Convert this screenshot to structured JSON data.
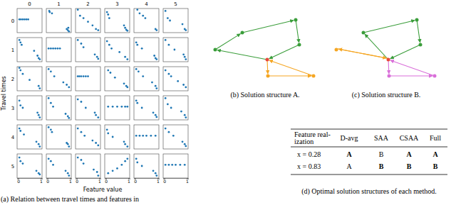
{
  "chart_data": {
    "type": "scatter",
    "x_label": "Feature value",
    "y_label": "Travel times",
    "caption": "(a) Relation between travel times and features in",
    "column_labels": [
      "0",
      "1",
      "2",
      "3",
      "4",
      "5"
    ],
    "row_labels": [
      "0",
      "1",
      "2",
      "3",
      "4",
      "5"
    ],
    "xlim": [
      -0.05,
      1.05
    ],
    "xticks": [
      0,
      1
    ],
    "ylim": [
      0,
      1
    ],
    "tick_labels": "x",
    "color": "#1f77b4",
    "cells": [
      [
        {
          "x": [
            0.05,
            0.12,
            0.2,
            0.28,
            0.36,
            0.44
          ],
          "y": [
            0.55,
            0.55,
            0.55,
            0.55,
            0.55,
            0.55
          ]
        },
        {
          "x": [
            0.08,
            0.1,
            0.2,
            0.85,
            0.9,
            0.92,
            0.95
          ],
          "y": [
            0.9,
            0.85,
            0.8,
            0.15,
            0.1,
            0.2,
            0.05
          ]
        },
        {
          "x": [
            0.05,
            0.15,
            0.3,
            0.5,
            0.7,
            0.85,
            0.95
          ],
          "y": [
            0.95,
            0.7,
            0.6,
            0.45,
            0.3,
            0.15,
            0.1
          ]
        },
        {
          "x": [
            0.05,
            0.1,
            0.15,
            0.8,
            0.85,
            0.9,
            0.95
          ],
          "y": [
            0.85,
            0.75,
            0.6,
            0.3,
            0.2,
            0.12,
            0.08
          ]
        },
        {
          "x": [
            0.1,
            0.2,
            0.35,
            0.45,
            0.9,
            0.95
          ],
          "y": [
            0.95,
            0.8,
            0.7,
            0.6,
            0.15,
            0.1
          ]
        },
        {
          "x": [
            0.05,
            0.15,
            0.25,
            0.8,
            0.9,
            0.95
          ],
          "y": [
            0.9,
            0.6,
            0.5,
            0.35,
            0.15,
            0.1
          ]
        }
      ],
      [
        {
          "x": [
            0.05,
            0.1,
            0.15,
            0.7,
            0.85,
            0.9,
            0.95
          ],
          "y": [
            0.9,
            0.8,
            0.7,
            0.45,
            0.25,
            0.15,
            0.1
          ]
        },
        {
          "x": [
            0.05,
            0.15,
            0.25,
            0.35,
            0.45,
            0.55
          ],
          "y": [
            0.55,
            0.55,
            0.55,
            0.55,
            0.55,
            0.55
          ]
        },
        {
          "x": [
            0.05,
            0.2,
            0.3,
            0.8,
            0.9,
            0.95
          ],
          "y": [
            0.9,
            0.75,
            0.6,
            0.3,
            0.2,
            0.12
          ]
        },
        {
          "x": [
            0.05,
            0.15,
            0.25,
            0.6,
            0.85,
            0.95
          ],
          "y": [
            0.85,
            0.7,
            0.55,
            0.4,
            0.2,
            0.1
          ]
        },
        {
          "x": [
            0.05,
            0.1,
            0.3,
            0.85,
            0.9,
            0.95
          ],
          "y": [
            0.8,
            0.7,
            0.55,
            0.25,
            0.15,
            0.1
          ]
        },
        {
          "x": [
            0.05,
            0.2,
            0.45,
            0.85,
            0.9,
            0.95
          ],
          "y": [
            0.9,
            0.7,
            0.5,
            0.3,
            0.2,
            0.1
          ]
        }
      ],
      [
        {
          "x": [
            0.05,
            0.1,
            0.2,
            0.5,
            0.9,
            0.95
          ],
          "y": [
            0.95,
            0.85,
            0.7,
            0.45,
            0.2,
            0.1
          ]
        },
        {
          "x": [
            0.05,
            0.15,
            0.3,
            0.7,
            0.85,
            0.95
          ],
          "y": [
            0.9,
            0.8,
            0.6,
            0.35,
            0.25,
            0.15
          ]
        },
        {
          "x": [
            0.05,
            0.12,
            0.2,
            0.3,
            0.4,
            0.5
          ],
          "y": [
            0.6,
            0.6,
            0.6,
            0.6,
            0.6,
            0.6
          ]
        },
        {
          "x": [
            0.1,
            0.2,
            0.4,
            0.8,
            0.9,
            0.95
          ],
          "y": [
            0.85,
            0.75,
            0.55,
            0.3,
            0.2,
            0.15
          ]
        },
        {
          "x": [
            0.05,
            0.15,
            0.35,
            0.75,
            0.9,
            0.95
          ],
          "y": [
            0.9,
            0.8,
            0.6,
            0.35,
            0.2,
            0.1
          ]
        },
        {
          "x": [
            0.05,
            0.2,
            0.3,
            0.6,
            0.85,
            0.95
          ],
          "y": [
            0.85,
            0.7,
            0.6,
            0.4,
            0.25,
            0.15
          ]
        }
      ],
      [
        {
          "x": [
            0.05,
            0.1,
            0.2,
            0.85,
            0.9,
            0.95
          ],
          "y": [
            0.8,
            0.6,
            0.5,
            0.3,
            0.2,
            0.1
          ]
        },
        {
          "x": [
            0.05,
            0.15,
            0.25,
            0.8,
            0.9,
            0.95
          ],
          "y": [
            0.9,
            0.7,
            0.55,
            0.25,
            0.15,
            0.08
          ]
        },
        {
          "x": [
            0.05,
            0.2,
            0.4,
            0.8,
            0.85,
            0.95
          ],
          "y": [
            0.85,
            0.75,
            0.5,
            0.3,
            0.2,
            0.1
          ]
        },
        {
          "x": [
            0.1,
            0.3,
            0.5,
            0.7,
            0.85,
            0.95
          ],
          "y": [
            0.55,
            0.55,
            0.55,
            0.55,
            0.55,
            0.55
          ]
        },
        {
          "x": [
            0.05,
            0.1,
            0.3,
            0.8,
            0.9,
            0.95
          ],
          "y": [
            0.8,
            0.7,
            0.5,
            0.3,
            0.2,
            0.12
          ]
        },
        {
          "x": [
            0.05,
            0.15,
            0.3,
            0.75,
            0.9,
            0.95
          ],
          "y": [
            0.9,
            0.65,
            0.5,
            0.35,
            0.2,
            0.1
          ]
        }
      ],
      [
        {
          "x": [
            0.05,
            0.1,
            0.25,
            0.8,
            0.9,
            0.95
          ],
          "y": [
            0.85,
            0.75,
            0.6,
            0.3,
            0.2,
            0.1
          ]
        },
        {
          "x": [
            0.05,
            0.15,
            0.2,
            0.85,
            0.9,
            0.95
          ],
          "y": [
            0.9,
            0.8,
            0.7,
            0.25,
            0.2,
            0.1
          ]
        },
        {
          "x": [
            0.05,
            0.2,
            0.35,
            0.7,
            0.85,
            0.95
          ],
          "y": [
            0.85,
            0.7,
            0.55,
            0.35,
            0.25,
            0.15
          ]
        },
        {
          "x": [
            0.05,
            0.1,
            0.3,
            0.8,
            0.85,
            0.95
          ],
          "y": [
            0.8,
            0.65,
            0.5,
            0.3,
            0.2,
            0.1
          ]
        },
        {
          "x": [
            0.05,
            0.2,
            0.35,
            0.5,
            0.7,
            0.9
          ],
          "y": [
            0.55,
            0.55,
            0.55,
            0.55,
            0.55,
            0.55
          ]
        },
        {
          "x": [
            0.05,
            0.2,
            0.4,
            0.8,
            0.9,
            0.95
          ],
          "y": [
            0.85,
            0.7,
            0.55,
            0.3,
            0.2,
            0.12
          ]
        }
      ],
      [
        {
          "x": [
            0.05,
            0.1,
            0.2,
            0.8,
            0.9,
            0.95
          ],
          "y": [
            0.85,
            0.7,
            0.6,
            0.3,
            0.2,
            0.15
          ]
        },
        {
          "x": [
            0.05,
            0.15,
            0.25,
            0.8,
            0.9,
            0.95
          ],
          "y": [
            0.8,
            0.7,
            0.55,
            0.3,
            0.2,
            0.1
          ]
        },
        {
          "x": [
            0.05,
            0.2,
            0.3,
            0.75,
            0.9,
            0.95
          ],
          "y": [
            0.85,
            0.75,
            0.6,
            0.35,
            0.25,
            0.1
          ]
        },
        {
          "x": [
            0.1,
            0.3,
            0.5,
            0.7,
            0.85,
            0.95
          ],
          "y": [
            0.2,
            0.3,
            0.4,
            0.55,
            0.7,
            0.8
          ]
        },
        {
          "x": [
            0.05,
            0.1,
            0.3,
            0.8,
            0.9,
            0.95
          ],
          "y": [
            0.8,
            0.65,
            0.5,
            0.3,
            0.2,
            0.1
          ]
        },
        {
          "x": [
            0.05,
            0.2,
            0.35,
            0.5,
            0.7,
            0.9
          ],
          "y": [
            0.55,
            0.55,
            0.55,
            0.55,
            0.55,
            0.55
          ]
        }
      ]
    ]
  },
  "diagrams": [
    {
      "caption": "(b) Solution structure A."
    },
    {
      "caption": "(c) Solution structure B."
    }
  ],
  "table": {
    "header": [
      [
        "Feature real-",
        "ization"
      ],
      [
        "D-avg"
      ],
      [
        "SAA"
      ],
      [
        "CSAA"
      ],
      [
        "Full"
      ]
    ],
    "rows": [
      {
        "label": "x = 0.28",
        "cells": [
          {
            "text": "A",
            "bold": true
          },
          {
            "text": "B",
            "bold": false
          },
          {
            "text": "A",
            "bold": true
          },
          {
            "text": "A",
            "bold": true
          }
        ]
      },
      {
        "label": "x = 0.83",
        "cells": [
          {
            "text": "A",
            "bold": false
          },
          {
            "text": "B",
            "bold": true
          },
          {
            "text": "B",
            "bold": true
          },
          {
            "text": "B",
            "bold": true
          }
        ]
      }
    ],
    "caption": "(d) Optimal solution structures of each method."
  }
}
